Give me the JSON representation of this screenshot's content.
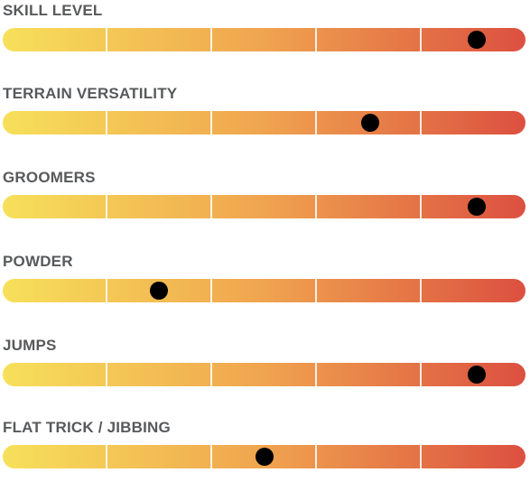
{
  "bar_gradient": {
    "start_color": "#f7e05a",
    "mid_color": "#f0a44f",
    "end_color": "#dc5040"
  },
  "ratings": [
    {
      "label": "SKILL LEVEL",
      "level": 0.907,
      "scale_segments": 5
    },
    {
      "label": "TERRAIN VERSATILITY",
      "level": 0.703,
      "scale_segments": 5
    },
    {
      "label": "GROOMERS",
      "level": 0.907,
      "scale_segments": 5
    },
    {
      "label": "POWDER",
      "level": 0.299,
      "scale_segments": 5
    },
    {
      "label": "JUMPS",
      "level": 0.907,
      "scale_segments": 5
    },
    {
      "label": "FLAT TRICK / JIBBING",
      "level": 0.501,
      "scale_segments": 5
    }
  ]
}
